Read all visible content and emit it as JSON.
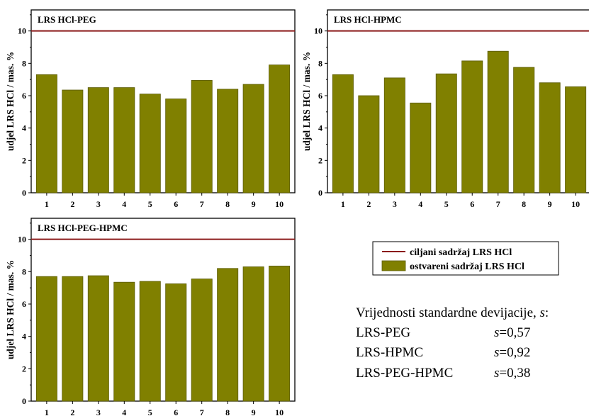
{
  "colors": {
    "bar": "#808000",
    "target_line": "#8b1a1a"
  },
  "chart_data": [
    {
      "type": "bar",
      "title": "LRS HCl-PEG",
      "categories": [
        "1",
        "2",
        "3",
        "4",
        "5",
        "6",
        "7",
        "8",
        "9",
        "10"
      ],
      "values": [
        7.3,
        6.35,
        6.5,
        6.5,
        6.1,
        5.8,
        6.95,
        6.4,
        6.7,
        7.9
      ],
      "target": 10,
      "ylabel": "udjel LRS HCl / mas. %",
      "ylim": [
        0,
        11.3
      ],
      "yticks": [
        "0",
        "2",
        "4",
        "6",
        "8",
        "10"
      ],
      "xticks": [
        "1",
        "2",
        "3",
        "4",
        "5",
        "6",
        "7",
        "8",
        "9",
        "10"
      ]
    },
    {
      "type": "bar",
      "title": "LRS HCl-HPMC",
      "categories": [
        "1",
        "2",
        "3",
        "4",
        "5",
        "6",
        "7",
        "8",
        "9",
        "10"
      ],
      "values": [
        7.3,
        6.0,
        7.1,
        5.55,
        7.35,
        8.15,
        8.75,
        7.75,
        6.8,
        6.55
      ],
      "target": 10,
      "ylabel": "udjel LRS HCl / mas. %",
      "ylim": [
        0,
        11.3
      ],
      "yticks": [
        "0",
        "2",
        "4",
        "6",
        "8",
        "10"
      ],
      "xticks": [
        "1",
        "2",
        "3",
        "4",
        "5",
        "6",
        "7",
        "8",
        "9",
        "10"
      ]
    },
    {
      "type": "bar",
      "title": "LRS HCl-PEG-HPMC",
      "categories": [
        "1",
        "2",
        "3",
        "4",
        "5",
        "6",
        "7",
        "8",
        "9",
        "10"
      ],
      "values": [
        7.7,
        7.7,
        7.75,
        7.35,
        7.4,
        7.25,
        7.55,
        8.2,
        8.3,
        8.35
      ],
      "target": 10,
      "ylabel": "udjel LRS HCl / mas. %",
      "ylim": [
        0,
        11.3
      ],
      "yticks": [
        "0",
        "2",
        "4",
        "6",
        "8",
        "10"
      ],
      "xticks": [
        "1",
        "2",
        "3",
        "4",
        "5",
        "6",
        "7",
        "8",
        "9",
        "10"
      ]
    }
  ],
  "legend": {
    "target_label": "ciljani sadržaj LRS HCl",
    "actual_label": "ostvareni sadržaj LRS HCl"
  },
  "sd_block": {
    "heading": "Vrijednosti standardne devijacije, ",
    "heading_symbol": "s",
    "heading_colon": ":",
    "rows": [
      {
        "name": "LRS-PEG",
        "symbol": "s",
        "value": "=0,57"
      },
      {
        "name": "LRS-HPMC",
        "symbol": "s",
        "value": "=0,92"
      },
      {
        "name": "LRS-PEG-HPMC",
        "symbol": "s",
        "value": "=0,38"
      }
    ]
  }
}
